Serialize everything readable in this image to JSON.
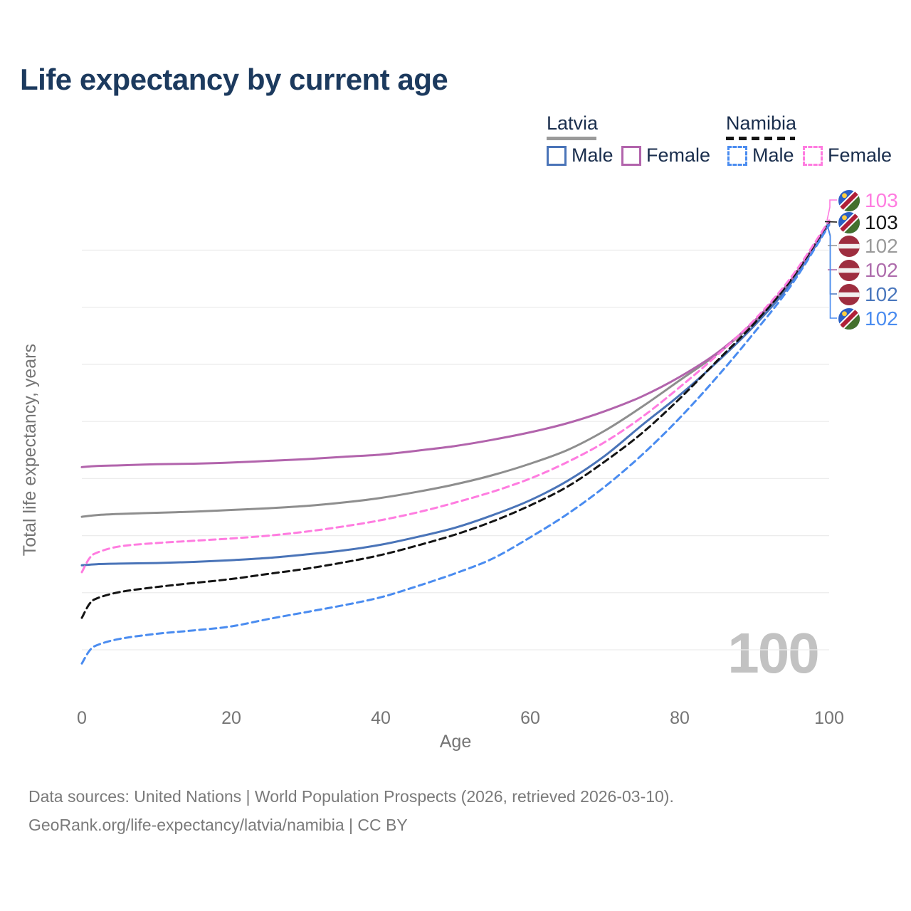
{
  "title": "Life expectancy by current age",
  "watermark": "100",
  "legend": {
    "groups": [
      {
        "label": "Latvia",
        "line_style": "solid",
        "underline_color": "#9a9a9a",
        "items": [
          {
            "label": "Male",
            "color": "#4a74b8",
            "dashed": false
          },
          {
            "label": "Female",
            "color": "#b264ac",
            "dashed": false
          }
        ]
      },
      {
        "label": "Namibia",
        "line_style": "dashed",
        "underline_color": "#141414",
        "items": [
          {
            "label": "Male",
            "color": "#4a8cf0",
            "dashed": true
          },
          {
            "label": "Female",
            "color": "#ff7ce0",
            "dashed": true
          }
        ]
      }
    ]
  },
  "chart_data": {
    "type": "line",
    "title": "Life expectancy by current age",
    "xlabel": "Age",
    "ylabel": "Total life expectancy, years",
    "x_ticks": [
      0,
      20,
      40,
      60,
      80,
      100
    ],
    "y_ticks": [
      65,
      70,
      75,
      80,
      85,
      90,
      95,
      100
    ],
    "xlim": [
      0,
      100
    ],
    "ylim": [
      63,
      104
    ],
    "grid": "horizontal",
    "legend_position": "top-right",
    "series": [
      {
        "name": "Latvia",
        "group": "Latvia",
        "sex": "Both",
        "color": "#8e8e8e",
        "dashed": false,
        "points": [
          [
            0,
            76.65
          ],
          [
            2,
            76.8
          ],
          [
            5,
            76.9
          ],
          [
            10,
            77.0
          ],
          [
            15,
            77.1
          ],
          [
            20,
            77.25
          ],
          [
            25,
            77.4
          ],
          [
            30,
            77.6
          ],
          [
            35,
            77.9
          ],
          [
            40,
            78.3
          ],
          [
            45,
            78.85
          ],
          [
            50,
            79.5
          ],
          [
            55,
            80.3
          ],
          [
            60,
            81.3
          ],
          [
            65,
            82.5
          ],
          [
            70,
            84.2
          ],
          [
            75,
            86.3
          ],
          [
            80,
            88.6
          ],
          [
            85,
            90.9
          ],
          [
            90,
            93.7
          ],
          [
            95,
            97.4
          ],
          [
            100,
            102.4
          ]
        ]
      },
      {
        "name": "Latvia Male",
        "group": "Latvia",
        "sex": "Male",
        "color": "#4a74b8",
        "dashed": false,
        "points": [
          [
            0,
            72.4
          ],
          [
            2,
            72.5
          ],
          [
            5,
            72.55
          ],
          [
            10,
            72.6
          ],
          [
            15,
            72.7
          ],
          [
            20,
            72.85
          ],
          [
            25,
            73.05
          ],
          [
            30,
            73.35
          ],
          [
            35,
            73.7
          ],
          [
            40,
            74.2
          ],
          [
            45,
            74.9
          ],
          [
            50,
            75.7
          ],
          [
            55,
            76.8
          ],
          [
            60,
            78.1
          ],
          [
            65,
            79.8
          ],
          [
            70,
            82.0
          ],
          [
            75,
            84.7
          ],
          [
            80,
            87.3
          ],
          [
            85,
            90.2
          ],
          [
            90,
            93.4
          ],
          [
            95,
            97.2
          ],
          [
            100,
            102.3
          ]
        ]
      },
      {
        "name": "Latvia Female",
        "group": "Latvia",
        "sex": "Female",
        "color": "#b264ac",
        "dashed": false,
        "points": [
          [
            0,
            81.0
          ],
          [
            2,
            81.1
          ],
          [
            5,
            81.15
          ],
          [
            10,
            81.25
          ],
          [
            15,
            81.3
          ],
          [
            20,
            81.4
          ],
          [
            25,
            81.55
          ],
          [
            30,
            81.7
          ],
          [
            35,
            81.9
          ],
          [
            40,
            82.1
          ],
          [
            45,
            82.45
          ],
          [
            50,
            82.85
          ],
          [
            55,
            83.4
          ],
          [
            60,
            84.05
          ],
          [
            65,
            84.85
          ],
          [
            70,
            85.9
          ],
          [
            75,
            87.2
          ],
          [
            80,
            88.9
          ],
          [
            85,
            91.0
          ],
          [
            90,
            93.8
          ],
          [
            95,
            97.5
          ],
          [
            100,
            102.4
          ]
        ]
      },
      {
        "name": "Namibia",
        "group": "Namibia",
        "sex": "Both",
        "color": "#141414",
        "dashed": true,
        "points": [
          [
            0,
            67.8
          ],
          [
            1,
            69.0
          ],
          [
            2,
            69.5
          ],
          [
            5,
            70.05
          ],
          [
            10,
            70.5
          ],
          [
            15,
            70.85
          ],
          [
            20,
            71.2
          ],
          [
            25,
            71.65
          ],
          [
            30,
            72.1
          ],
          [
            35,
            72.65
          ],
          [
            40,
            73.3
          ],
          [
            45,
            74.15
          ],
          [
            50,
            75.1
          ],
          [
            55,
            76.25
          ],
          [
            60,
            77.65
          ],
          [
            65,
            79.3
          ],
          [
            70,
            81.5
          ],
          [
            75,
            84.0
          ],
          [
            80,
            87.0
          ],
          [
            85,
            90.3
          ],
          [
            90,
            93.6
          ],
          [
            95,
            97.5
          ],
          [
            100,
            102.5
          ]
        ]
      },
      {
        "name": "Namibia Male",
        "group": "Namibia",
        "sex": "Male",
        "color": "#4a8cf0",
        "dashed": true,
        "points": [
          [
            0,
            63.8
          ],
          [
            1,
            64.9
          ],
          [
            2,
            65.4
          ],
          [
            5,
            65.95
          ],
          [
            10,
            66.4
          ],
          [
            15,
            66.7
          ],
          [
            20,
            67.05
          ],
          [
            25,
            67.7
          ],
          [
            30,
            68.3
          ],
          [
            35,
            68.9
          ],
          [
            40,
            69.6
          ],
          [
            45,
            70.6
          ],
          [
            50,
            71.7
          ],
          [
            55,
            73.0
          ],
          [
            60,
            74.85
          ],
          [
            65,
            76.9
          ],
          [
            70,
            79.3
          ],
          [
            75,
            82.1
          ],
          [
            80,
            85.3
          ],
          [
            85,
            88.9
          ],
          [
            90,
            92.8
          ],
          [
            95,
            97.0
          ],
          [
            100,
            102.2
          ]
        ]
      },
      {
        "name": "Namibia Female",
        "group": "Namibia",
        "sex": "Female",
        "color": "#ff7ce0",
        "dashed": true,
        "points": [
          [
            0,
            71.8
          ],
          [
            1,
            73.0
          ],
          [
            2,
            73.5
          ],
          [
            5,
            74.05
          ],
          [
            10,
            74.35
          ],
          [
            15,
            74.55
          ],
          [
            20,
            74.75
          ],
          [
            25,
            75.0
          ],
          [
            30,
            75.35
          ],
          [
            35,
            75.8
          ],
          [
            40,
            76.35
          ],
          [
            45,
            77.05
          ],
          [
            50,
            77.9
          ],
          [
            55,
            78.85
          ],
          [
            60,
            80.0
          ],
          [
            65,
            81.45
          ],
          [
            70,
            83.2
          ],
          [
            75,
            85.4
          ],
          [
            80,
            88.0
          ],
          [
            85,
            90.8
          ],
          [
            90,
            93.9
          ],
          [
            95,
            97.7
          ],
          [
            100,
            102.6
          ]
        ]
      }
    ]
  },
  "end_labels": [
    {
      "series": "Namibia Female",
      "flag": "namibia",
      "value": "103",
      "color": "#ff7ce0"
    },
    {
      "series": "Namibia",
      "flag": "namibia",
      "value": "103",
      "color": "#141414"
    },
    {
      "series": "Latvia",
      "flag": "latvia",
      "value": "102",
      "color": "#9a9a9a"
    },
    {
      "series": "Latvia Female",
      "flag": "latvia",
      "value": "102",
      "color": "#ae6cac"
    },
    {
      "series": "Latvia Male",
      "flag": "latvia",
      "value": "102",
      "color": "#4a77bd"
    },
    {
      "series": "Namibia Male",
      "flag": "namibia",
      "value": "102",
      "color": "#4a8cf0"
    }
  ],
  "footer": {
    "line1": "Data sources: United Nations | World Population Prospects (2026, retrieved 2026-03-10).",
    "line2": "GeoRank.org/life-expectancy/latvia/namibia | CC BY"
  }
}
